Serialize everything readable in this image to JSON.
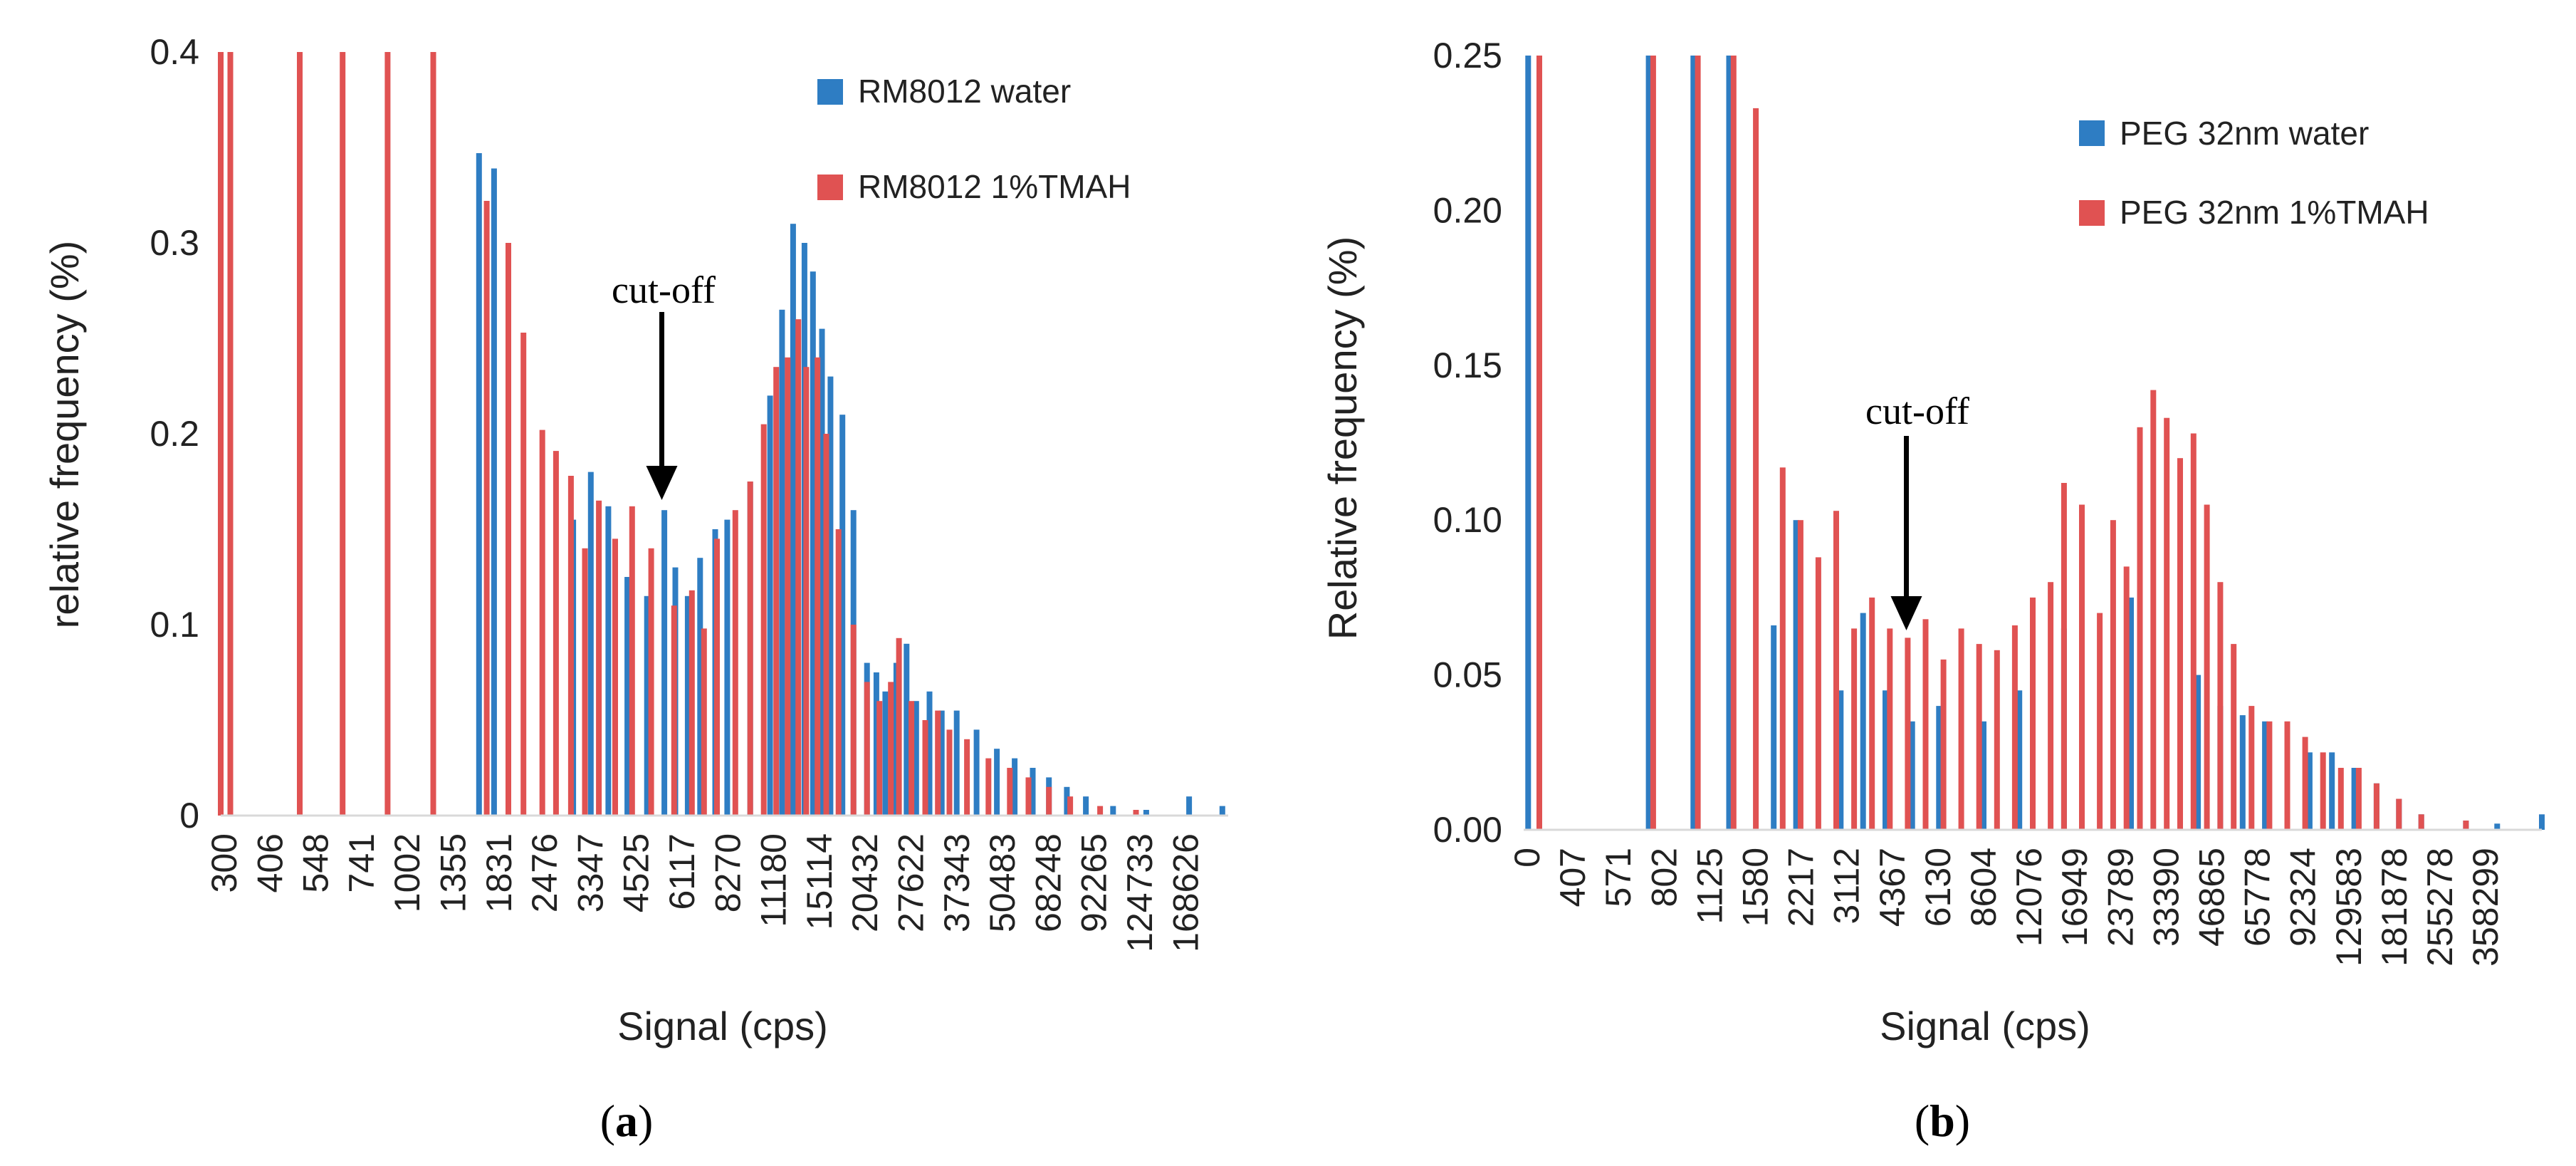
{
  "chart_data": [
    {
      "type": "bar",
      "panel_label": "(a)",
      "panel_letter": "a",
      "xlabel": "Signal (cps)",
      "ylabel": "relative frequency (%)",
      "ylim": [
        0,
        0.4
      ],
      "yticks": [
        "0",
        "0.1",
        "0.2",
        "0.3",
        "0.4"
      ],
      "ytick_values": [
        0,
        0.1,
        0.2,
        0.3,
        0.4
      ],
      "xticks": [
        "300",
        "406",
        "548",
        "741",
        "1002",
        "1355",
        "1831",
        "2476",
        "3347",
        "4525",
        "6117",
        "8270",
        "11180",
        "15114",
        "20432",
        "27622",
        "37343",
        "50483",
        "68248",
        "92265",
        "124733",
        "168626"
      ],
      "x_log_range": [
        300,
        260000
      ],
      "annotation": "cut-off",
      "cutoff_value": 5800,
      "legend": [
        {
          "label": "RM8012 water",
          "color": "#2E7DC3"
        },
        {
          "label": "RM8012 1%TMAH",
          "color": "#E05252"
        }
      ],
      "series": [
        {
          "name": "RM8012 water",
          "color": "#2E7DC3",
          "points": [
            [
              1700,
              0.347
            ],
            [
              1880,
              0.339
            ],
            [
              3200,
              0.155
            ],
            [
              3600,
              0.18
            ],
            [
              4050,
              0.162
            ],
            [
              4600,
              0.125
            ],
            [
              5250,
              0.115
            ],
            [
              5900,
              0.16
            ],
            [
              6350,
              0.13
            ],
            [
              6900,
              0.115
            ],
            [
              7500,
              0.135
            ],
            [
              8300,
              0.15
            ],
            [
              9000,
              0.155
            ],
            [
              10500,
              0.175
            ],
            [
              12000,
              0.22
            ],
            [
              13000,
              0.265
            ],
            [
              14000,
              0.31
            ],
            [
              15114,
              0.3
            ],
            [
              16000,
              0.285
            ],
            [
              17000,
              0.255
            ],
            [
              18000,
              0.23
            ],
            [
              19500,
              0.21
            ],
            [
              21000,
              0.16
            ],
            [
              23000,
              0.08
            ],
            [
              24500,
              0.075
            ],
            [
              26000,
              0.065
            ],
            [
              28000,
              0.08
            ],
            [
              30000,
              0.09
            ],
            [
              32000,
              0.06
            ],
            [
              35000,
              0.065
            ],
            [
              38000,
              0.055
            ],
            [
              42000,
              0.055
            ],
            [
              48000,
              0.045
            ],
            [
              55000,
              0.035
            ],
            [
              62000,
              0.03
            ],
            [
              70000,
              0.025
            ],
            [
              78000,
              0.02
            ],
            [
              88000,
              0.015
            ],
            [
              100000,
              0.01
            ],
            [
              120000,
              0.005
            ],
            [
              150000,
              0.003
            ],
            [
              200000,
              0.01
            ],
            [
              250000,
              0.005
            ]
          ]
        },
        {
          "name": "RM8012 1%TMAH",
          "color": "#E05252",
          "points": [
            [
              300,
              0.4
            ],
            [
              320,
              0.4
            ],
            [
              510,
              0.4
            ],
            [
              680,
              0.4
            ],
            [
              920,
              0.4
            ],
            [
              1250,
              0.4
            ],
            [
              1790,
              0.322
            ],
            [
              2070,
              0.3
            ],
            [
              2290,
              0.253
            ],
            [
              2600,
              0.202
            ],
            [
              2850,
              0.191
            ],
            [
              3150,
              0.178
            ],
            [
              3460,
              0.14
            ],
            [
              3800,
              0.165
            ],
            [
              4240,
              0.145
            ],
            [
              4750,
              0.162
            ],
            [
              5400,
              0.14
            ],
            [
              6300,
              0.11
            ],
            [
              7100,
              0.118
            ],
            [
              7700,
              0.098
            ],
            [
              8400,
              0.145
            ],
            [
              9500,
              0.16
            ],
            [
              10500,
              0.175
            ],
            [
              11500,
              0.205
            ],
            [
              12500,
              0.235
            ],
            [
              13500,
              0.24
            ],
            [
              14500,
              0.26
            ],
            [
              15300,
              0.235
            ],
            [
              16500,
              0.24
            ],
            [
              17500,
              0.2
            ],
            [
              19000,
              0.15
            ],
            [
              21000,
              0.1
            ],
            [
              23000,
              0.07
            ],
            [
              25000,
              0.06
            ],
            [
              27000,
              0.07
            ],
            [
              28500,
              0.093
            ],
            [
              31000,
              0.06
            ],
            [
              34000,
              0.05
            ],
            [
              37000,
              0.055
            ],
            [
              40000,
              0.045
            ],
            [
              45000,
              0.04
            ],
            [
              52000,
              0.03
            ],
            [
              60000,
              0.025
            ],
            [
              68000,
              0.02
            ],
            [
              78000,
              0.015
            ],
            [
              90000,
              0.01
            ],
            [
              110000,
              0.005
            ],
            [
              140000,
              0.003
            ]
          ]
        }
      ]
    },
    {
      "type": "bar",
      "panel_label": "(b)",
      "panel_letter": "b",
      "xlabel": "Signal (cps)",
      "ylabel": "Relative  frequency (%)",
      "ylim": [
        0,
        0.25
      ],
      "yticks": [
        "0.00",
        "0.05",
        "0.10",
        "0.15",
        "0.20",
        "0.25"
      ],
      "ytick_values": [
        0,
        0.05,
        0.1,
        0.15,
        0.2,
        0.25
      ],
      "xticks": [
        "0",
        "407",
        "571",
        "802",
        "1125",
        "1580",
        "2217",
        "3112",
        "4367",
        "6130",
        "8604",
        "12076",
        "16949",
        "23789",
        "33390",
        "46865",
        "65778",
        "92324",
        "129583",
        "181878",
        "255278",
        "358299"
      ],
      "x_cat_range": [
        -0.1,
        22.7
      ],
      "annotation": "cut-off",
      "cutoff_position": 8.47,
      "legend": [
        {
          "label": "PEG 32nm water",
          "color": "#2E7DC3"
        },
        {
          "label": "PEG 32nm 1%TMAH",
          "color": "#E05252"
        }
      ],
      "series": [
        {
          "name": "PEG 32nm water",
          "color": "#2E7DC3",
          "points": [
            [
              0,
              0.25
            ],
            [
              2.7,
              0.25
            ],
            [
              3.7,
              0.25
            ],
            [
              4.5,
              0.25
            ],
            [
              5.5,
              0.066
            ],
            [
              6.0,
              0.1
            ],
            [
              7.0,
              0.045
            ],
            [
              7.5,
              0.07
            ],
            [
              8.0,
              0.045
            ],
            [
              8.6,
              0.035
            ],
            [
              9.2,
              0.04
            ],
            [
              10.2,
              0.035
            ],
            [
              11.0,
              0.045
            ],
            [
              12.0,
              0.065
            ],
            [
              13.5,
              0.075
            ],
            [
              15.0,
              0.05
            ],
            [
              15.5,
              0.04
            ],
            [
              16.0,
              0.037
            ],
            [
              16.5,
              0.035
            ],
            [
              17.0,
              0.03
            ],
            [
              17.5,
              0.025
            ],
            [
              18.0,
              0.025
            ],
            [
              18.5,
              0.02
            ],
            [
              19.0,
              0.015
            ],
            [
              19.5,
              0.01
            ],
            [
              20.0,
              0.005
            ],
            [
              21.0,
              0.003
            ],
            [
              21.7,
              0.002
            ],
            [
              22.7,
              0.005
            ]
          ]
        },
        {
          "name": "PEG 32nm 1%TMAH",
          "color": "#E05252",
          "points": [
            [
              0.25,
              0.25
            ],
            [
              2.8,
              0.25
            ],
            [
              3.8,
              0.25
            ],
            [
              4.6,
              0.25
            ],
            [
              5.1,
              0.233
            ],
            [
              5.7,
              0.117
            ],
            [
              6.1,
              0.1
            ],
            [
              6.5,
              0.088
            ],
            [
              6.9,
              0.103
            ],
            [
              7.3,
              0.065
            ],
            [
              7.7,
              0.075
            ],
            [
              8.1,
              0.065
            ],
            [
              8.5,
              0.062
            ],
            [
              8.9,
              0.068
            ],
            [
              9.3,
              0.055
            ],
            [
              9.7,
              0.065
            ],
            [
              10.1,
              0.06
            ],
            [
              10.5,
              0.058
            ],
            [
              10.9,
              0.066
            ],
            [
              11.3,
              0.075
            ],
            [
              11.7,
              0.08
            ],
            [
              12.0,
              0.112
            ],
            [
              12.4,
              0.105
            ],
            [
              12.8,
              0.07
            ],
            [
              13.1,
              0.1
            ],
            [
              13.4,
              0.085
            ],
            [
              13.7,
              0.13
            ],
            [
              14.0,
              0.142
            ],
            [
              14.3,
              0.133
            ],
            [
              14.6,
              0.12
            ],
            [
              14.9,
              0.128
            ],
            [
              15.2,
              0.105
            ],
            [
              15.5,
              0.08
            ],
            [
              15.8,
              0.06
            ],
            [
              16.2,
              0.04
            ],
            [
              16.6,
              0.035
            ],
            [
              17.0,
              0.035
            ],
            [
              17.4,
              0.03
            ],
            [
              17.8,
              0.025
            ],
            [
              18.2,
              0.02
            ],
            [
              18.6,
              0.02
            ],
            [
              19.0,
              0.015
            ],
            [
              19.5,
              0.01
            ],
            [
              20.0,
              0.005
            ],
            [
              21.0,
              0.003
            ]
          ]
        }
      ]
    }
  ]
}
